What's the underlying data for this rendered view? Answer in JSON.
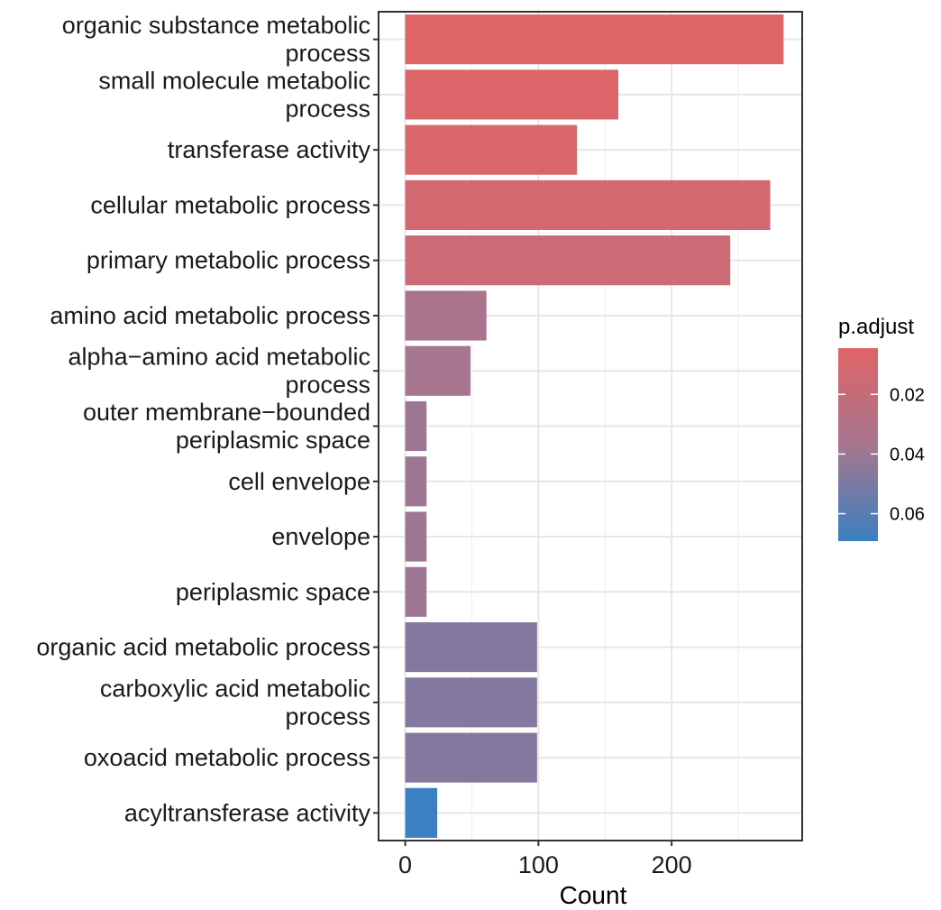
{
  "chart_data": {
    "type": "bar",
    "orientation": "horizontal",
    "xlabel": "Count",
    "ylabel": "",
    "xlim": [
      -20,
      298
    ],
    "xticks": [
      0,
      100,
      200
    ],
    "grid": true,
    "legend": {
      "title": "p.adjust",
      "placement": "right",
      "type": "colorbar",
      "range": [
        0.0045,
        0.0692
      ],
      "ticks": [
        0.02,
        0.04,
        0.06
      ],
      "tick_labels": [
        "0.02",
        "0.04",
        "0.06"
      ],
      "low_color": "#e06467",
      "high_color": "#3a80c0"
    },
    "categories": [
      "organic substance metabolic process",
      "small molecule metabolic process",
      "transferase activity",
      "cellular metabolic process",
      "primary metabolic process",
      "amino acid metabolic process",
      "alpha−amino acid metabolic process",
      "outer membrane−bounded periplasmic space",
      "cell envelope",
      "envelope",
      "periplasmic space",
      "organic acid metabolic process",
      "carboxylic acid metabolic process",
      "oxoacid metabolic process",
      "acyltransferase activity"
    ],
    "category_lines": [
      [
        "organic substance metabolic",
        "process"
      ],
      [
        "small molecule metabolic",
        "process"
      ],
      [
        "transferase activity"
      ],
      [
        "cellular metabolic process"
      ],
      [
        "primary metabolic process"
      ],
      [
        "amino acid metabolic process"
      ],
      [
        "alpha−amino acid metabolic",
        "process"
      ],
      [
        "outer membrane−bounded",
        "periplasmic space"
      ],
      [
        "cell envelope"
      ],
      [
        "envelope"
      ],
      [
        "periplasmic space"
      ],
      [
        "organic acid metabolic process"
      ],
      [
        "carboxylic acid metabolic",
        "process"
      ],
      [
        "oxoacid metabolic process"
      ],
      [
        "acyltransferase activity"
      ]
    ],
    "values": [
      284,
      160,
      129,
      274,
      244,
      61,
      49,
      16,
      16,
      16,
      16,
      99,
      99,
      99,
      24
    ],
    "p_adjust": [
      0.005,
      0.007,
      0.008,
      0.012,
      0.016,
      0.035,
      0.037,
      0.04,
      0.04,
      0.04,
      0.04,
      0.047,
      0.047,
      0.047,
      0.069
    ]
  }
}
